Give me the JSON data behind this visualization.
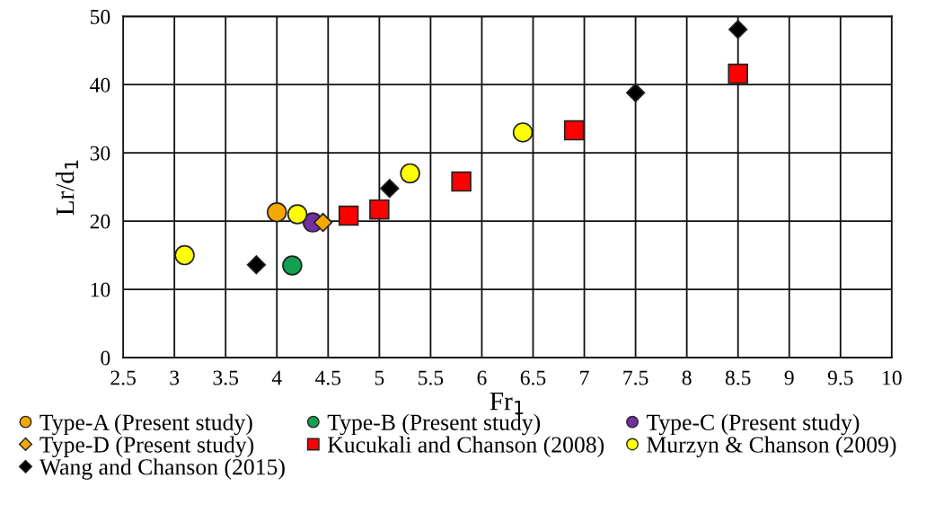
{
  "chart_data": {
    "type": "scatter",
    "xlabel": "Fr$_{1}$",
    "ylabel": "Lr/d$_{1}$",
    "xlim": [
      2.5,
      10
    ],
    "xticks": [
      2.5,
      3,
      3.5,
      4,
      4.5,
      5,
      5.5,
      6,
      6.5,
      7,
      7.5,
      8,
      8.5,
      9,
      9.5,
      10
    ],
    "ylim": [
      0,
      50
    ],
    "yticks": [
      0,
      10,
      20,
      30,
      40,
      50
    ],
    "grid": true,
    "legend": "bottom",
    "series": [
      {
        "name": "Type-A (Present study)",
        "color": "#f5a800",
        "marker": "circle",
        "x": [
          4.0
        ],
        "values": [
          21.3
        ]
      },
      {
        "name": "Type-B (Present study)",
        "color": "#12a050",
        "marker": "circle",
        "x": [
          4.15
        ],
        "values": [
          13.5
        ]
      },
      {
        "name": "Type-C (Present study)",
        "color": "#7030a0",
        "marker": "circle",
        "x": [
          4.35
        ],
        "values": [
          19.8
        ]
      },
      {
        "name": "Type-D (Present study)",
        "color": "#f5a800",
        "marker": "diamond",
        "x": [
          4.45
        ],
        "values": [
          19.8
        ]
      },
      {
        "name": "Kucukali and Chanson (2008)",
        "color": "#ff0000",
        "marker": "square",
        "x": [
          4.7,
          5.0,
          5.8,
          6.9,
          8.5
        ],
        "values": [
          20.8,
          21.7,
          25.8,
          33.3,
          41.6
        ]
      },
      {
        "name": "Murzyn & Chanson (2009)",
        "color": "#ffff00",
        "marker": "circle",
        "x": [
          3.1,
          4.2,
          5.3,
          6.4
        ],
        "values": [
          15.0,
          21.0,
          27.0,
          33.0
        ]
      },
      {
        "name": "Wang and Chanson (2015)",
        "color": "#000000",
        "marker": "diamond",
        "x": [
          3.8,
          5.1,
          7.5,
          8.5
        ],
        "values": [
          13.6,
          24.8,
          38.8,
          48.1
        ]
      }
    ]
  }
}
